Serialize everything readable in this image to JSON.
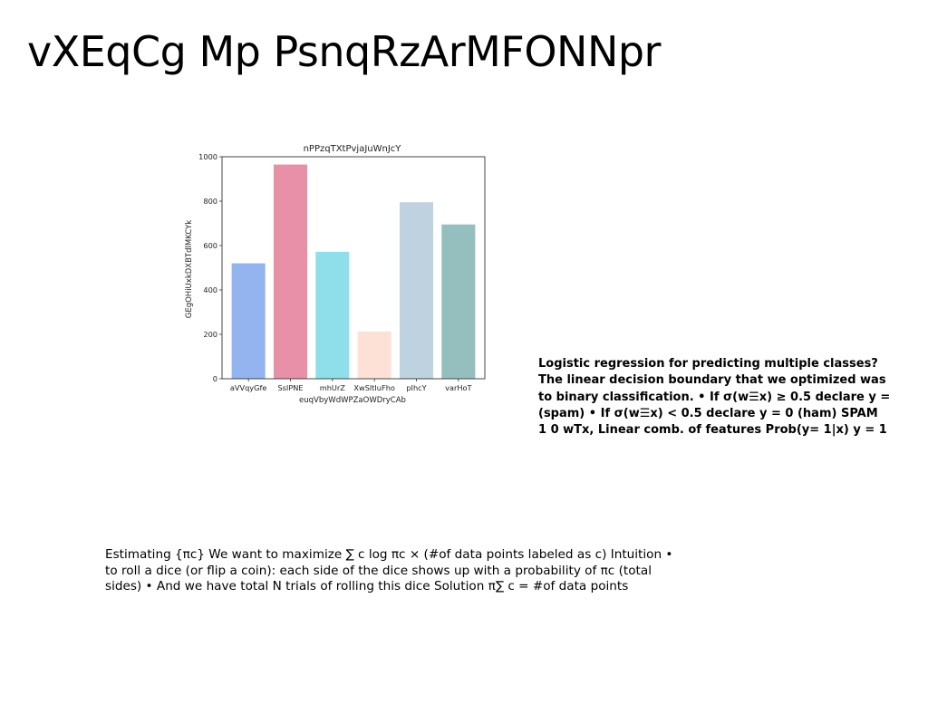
{
  "slide": {
    "title": "vXEqCg Mp PsnqRzArMFONNpr"
  },
  "notes": {
    "bold_block": "Logistic regression for predicting multiple classes?\nThe linear decision boundary that we optimized was\nto binary classification. • If σ(w☰x) ≥ 0.5 declare y =\n(spam) • If σ(w☰x) < 0.5 declare y = 0 (ham) SPAM\n1 0 wTx, Linear comb. of features Prob(y= 1|x) y = 1",
    "plain_block": "Estimating {πc} We want to maximize ∑ c log πc × (#of data points labeled as c) Intuition •\nto roll a dice (or flip a coin): each side of the dice shows up with a probability of πc (total\nsides) • And we have total N trials of rolling this dice Solution π∑ c = #of data points"
  },
  "chart_data": {
    "type": "bar",
    "title": "nPPzqTXtPvjaJuWnJcY",
    "xlabel": "euqVbyWdWPZaOWDryCAb",
    "ylabel": "GEgOHiUxkDXBTdlMKCYk",
    "categories": [
      "aVVqyGfe",
      "SsIPNE",
      "mhUrZ",
      "XwSltIuFho",
      "pIhcY",
      "varHoT"
    ],
    "values": [
      520,
      965,
      572,
      213,
      795,
      695
    ],
    "colors": [
      "#93b4ee",
      "#e890a8",
      "#8edfea",
      "#fde0d6",
      "#bed2df",
      "#95bfbe"
    ],
    "ylim": [
      0,
      1000
    ],
    "yticks": [
      "0",
      "200",
      "400",
      "600",
      "800",
      "1000"
    ],
    "grid": false,
    "legend": "none"
  }
}
